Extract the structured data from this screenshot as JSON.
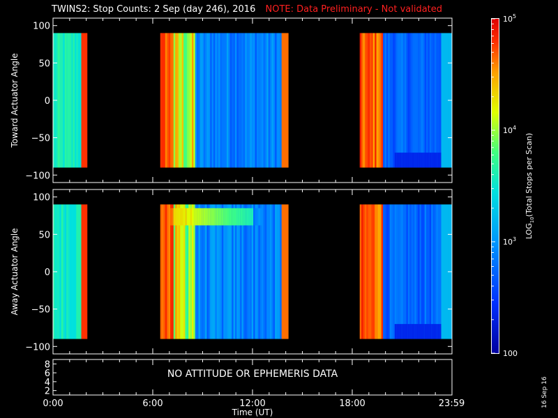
{
  "header": {
    "title": "TWINS2: Stop Counts:  2 Sep (day 246), 2016",
    "note": "NOTE: Data Preliminary - Not validated"
  },
  "date_stamp": "16 Sep 16",
  "colors": {
    "background": "#000000",
    "axes": "#ffffff",
    "note_text": "#ff2020",
    "no_data": "#000000"
  },
  "chart_data": [
    {
      "type": "heatmap",
      "panel": "top",
      "title": "",
      "ylabel": "Toward Actuator Angle",
      "xlabel": "",
      "ylim": [
        -110,
        110
      ],
      "y_ticks": [
        "100",
        "50",
        "0",
        "−50",
        "−100"
      ],
      "y_tick_values": [
        100,
        50,
        0,
        -50,
        -100
      ],
      "data_y_range": [
        -90,
        90
      ],
      "x_units": "hours UT",
      "xlim": [
        0,
        24
      ],
      "data_segments_hours": [
        [
          0.0,
          2.05
        ],
        [
          6.45,
          14.15
        ],
        [
          18.45,
          24.0
        ]
      ],
      "description_levels": "log10 total stops per scan per time/angle bin"
    },
    {
      "type": "heatmap",
      "panel": "middle",
      "title": "",
      "ylabel": "Away Actuator Angle",
      "xlabel": "",
      "ylim": [
        -110,
        110
      ],
      "y_ticks": [
        "100",
        "50",
        "0",
        "−50",
        "−100"
      ],
      "y_tick_values": [
        100,
        50,
        0,
        -50,
        -100
      ],
      "data_y_range": [
        -90,
        90
      ],
      "x_units": "hours UT",
      "xlim": [
        0,
        24
      ],
      "data_segments_hours": [
        [
          0.0,
          2.05
        ],
        [
          6.45,
          14.15
        ],
        [
          18.45,
          24.0
        ]
      ]
    },
    {
      "type": "line",
      "panel": "bottom",
      "title": "",
      "ylabel": "",
      "xlabel": "Time (UT)",
      "ylim": [
        1,
        9
      ],
      "y_ticks": [
        "8",
        "6",
        "4",
        "2"
      ],
      "y_tick_values": [
        8,
        6,
        4,
        2
      ],
      "message": "NO ATTITUDE OR EPHEMERIS DATA",
      "x_ticks": [
        "0:00",
        "6:00",
        "12:00",
        "18:00",
        "23:59"
      ],
      "x_tick_values": [
        0,
        6,
        12,
        18,
        23.98
      ],
      "xlim": [
        0,
        24
      ]
    }
  ],
  "colorbar": {
    "label": "LOG",
    "label_sub": "10",
    "label_rest": "(Total Stops per Scan)",
    "scale": "log",
    "range": [
      100,
      100000
    ],
    "tick_labels": [
      {
        "value": 100000,
        "base": "10",
        "exp": "5"
      },
      {
        "value": 10000,
        "base": "10",
        "exp": "4"
      },
      {
        "value": 1000,
        "base": "10",
        "exp": "3"
      },
      {
        "value": 100,
        "base": "100",
        "exp": ""
      }
    ]
  }
}
